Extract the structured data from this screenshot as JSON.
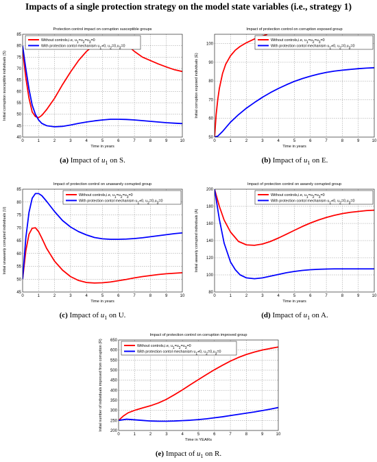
{
  "page": {
    "title": "Impacts of a single protection strategy on the model state variables (i.e., strategy 1)"
  },
  "colors": {
    "without": "#ff0000",
    "with": "#0000ff",
    "grid": "#8c8c8c"
  },
  "chart_data": [
    {
      "id": "a",
      "type": "line",
      "title": "Protection control impact on corruption susceptible groups",
      "xlabel": "Time in years",
      "ylabel": "Initial corruption susceptible individuals (S)",
      "xlim": [
        0,
        10
      ],
      "ylim": [
        40,
        85
      ],
      "xticks": [
        0,
        1,
        2,
        3,
        4,
        5,
        6,
        7,
        8,
        9,
        10
      ],
      "yticks": [
        40,
        45,
        50,
        55,
        60,
        65,
        70,
        75,
        80,
        85
      ],
      "grid": true,
      "legend": "top-left",
      "caption_label": "(a)",
      "caption_text": "Impact of u1 on S.",
      "series": [
        {
          "name": "Without controls,i.e, u1=u2=u3=0",
          "color": "#ff0000",
          "x": [
            0,
            0.2,
            0.4,
            0.6,
            0.8,
            1.0,
            1.2,
            1.5,
            2.0,
            2.5,
            3.0,
            3.5,
            4.0,
            4.5,
            5.0,
            5.5,
            6.0,
            6.5,
            7.0,
            7.5,
            8.0,
            8.5,
            9.0,
            9.5,
            10
          ],
          "y": [
            78,
            66,
            57,
            51,
            49,
            48.5,
            49.5,
            52,
            57,
            63,
            68.5,
            73.5,
            77.5,
            80.5,
            82.3,
            83,
            82.5,
            80.5,
            77.5,
            75,
            73.5,
            72,
            70.7,
            69.5,
            68.7
          ]
        },
        {
          "name": "With protection contol mechanism u1≠0, u2=0,u3=0",
          "color": "#0000ff",
          "x": [
            0,
            0.2,
            0.4,
            0.6,
            0.8,
            1.0,
            1.2,
            1.5,
            2.0,
            2.5,
            3.0,
            3.5,
            4.0,
            4.5,
            5.0,
            5.5,
            6.0,
            6.5,
            7.0,
            7.5,
            8.0,
            8.5,
            9.0,
            9.5,
            10
          ],
          "y": [
            80,
            70,
            61,
            54,
            50,
            47.5,
            46,
            45,
            44.5,
            44.7,
            45.3,
            46,
            46.6,
            47.1,
            47.5,
            47.8,
            47.8,
            47.7,
            47.5,
            47.2,
            46.9,
            46.6,
            46.3,
            46.1,
            45.9
          ]
        }
      ]
    },
    {
      "id": "b",
      "type": "line",
      "title": "Impact of protection control on corruption exposed group",
      "xlabel": "Time in years",
      "ylabel": "Initial corruption exposed individuals (E)",
      "xlim": [
        0,
        10
      ],
      "ylim": [
        50,
        105
      ],
      "xticks": [
        0,
        1,
        2,
        3,
        4,
        5,
        6,
        7,
        8,
        9,
        10
      ],
      "yticks": [
        50,
        60,
        70,
        80,
        90,
        100
      ],
      "grid": true,
      "legend": "top-right",
      "caption_label": "(b)",
      "caption_text": "Impact of u1 on E.",
      "series": [
        {
          "name": "Without controls,i.e, u1=u2=u3=0",
          "color": "#ff0000",
          "x": [
            0,
            0.1,
            0.2,
            0.3,
            0.5,
            0.7,
            1.0,
            1.3,
            1.6,
            2.0,
            2.5,
            3.0,
            3.3
          ],
          "y": [
            50,
            62,
            70,
            76,
            84,
            89,
            93.5,
            96.5,
            98.5,
            100.5,
            102.5,
            104,
            105
          ]
        },
        {
          "name": "With protection contol mechanism u1≠0, u2=0,u3=0",
          "color": "#0000ff",
          "x": [
            0,
            0.2,
            0.5,
            1.0,
            1.5,
            2.0,
            2.5,
            3.0,
            3.5,
            4.0,
            4.5,
            5.0,
            5.5,
            6.0,
            6.5,
            7.0,
            7.5,
            8.0,
            8.5,
            9.0,
            9.5,
            10
          ],
          "y": [
            50,
            50.5,
            53,
            58,
            62,
            65.5,
            68.5,
            71.3,
            73.8,
            76,
            78,
            79.8,
            81.3,
            82.6,
            83.7,
            84.6,
            85.3,
            85.8,
            86.2,
            86.6,
            86.9,
            87.1
          ]
        }
      ]
    },
    {
      "id": "c",
      "type": "line",
      "title": "Impact of protection control on unawarely corrupted group",
      "xlabel": "Time in years",
      "ylabel": "Initial unawarely corrupted individuals (U)",
      "xlim": [
        0,
        10
      ],
      "ylim": [
        45,
        85
      ],
      "xticks": [
        0,
        1,
        2,
        3,
        4,
        5,
        6,
        7,
        8,
        9,
        10
      ],
      "yticks": [
        45,
        50,
        55,
        60,
        65,
        70,
        75,
        80,
        85
      ],
      "grid": true,
      "legend": "top-right",
      "caption_label": "(c)",
      "caption_text": "Impact of u1 on U.",
      "series": [
        {
          "name": "Without controls,i.e, u1=u2=u3=0",
          "color": "#ff0000",
          "x": [
            0,
            0.2,
            0.4,
            0.6,
            0.8,
            1.0,
            1.2,
            1.5,
            2.0,
            2.5,
            3.0,
            3.5,
            4.0,
            4.5,
            5.0,
            5.5,
            6.0,
            6.5,
            7.0,
            7.5,
            8.0,
            8.5,
            9.0,
            9.5,
            10
          ],
          "y": [
            50,
            61,
            67.5,
            69.8,
            70,
            68.5,
            66,
            62,
            57,
            53.5,
            51,
            49.5,
            48.7,
            48.5,
            48.6,
            48.9,
            49.4,
            49.9,
            50.5,
            51,
            51.4,
            51.8,
            52.1,
            52.3,
            52.5
          ]
        },
        {
          "name": "With protection contol mechanism u1≠0, u2=0,u3=0",
          "color": "#0000ff",
          "x": [
            0,
            0.2,
            0.4,
            0.6,
            0.8,
            1.0,
            1.2,
            1.5,
            2.0,
            2.5,
            3.0,
            3.5,
            4.0,
            4.5,
            5.0,
            5.5,
            6.0,
            6.5,
            7.0,
            7.5,
            8.0,
            8.5,
            9.0,
            9.5,
            10
          ],
          "y": [
            50,
            66,
            76,
            81.5,
            83.3,
            83.3,
            82.5,
            80.3,
            76.3,
            72.8,
            70.3,
            68.5,
            67.2,
            66.2,
            65.7,
            65.5,
            65.5,
            65.6,
            65.8,
            66.1,
            66.5,
            66.9,
            67.3,
            67.7,
            68
          ]
        }
      ]
    },
    {
      "id": "d",
      "type": "line",
      "title": "Impact of protection control on awarely corrupted group",
      "xlabel": "Time in years",
      "ylabel": "Initial awarely corrupted individuals (A)",
      "xlim": [
        0,
        10
      ],
      "ylim": [
        80,
        200
      ],
      "xticks": [
        0,
        1,
        2,
        3,
        4,
        5,
        6,
        7,
        8,
        9,
        10
      ],
      "yticks": [
        80,
        100,
        120,
        140,
        160,
        180,
        200
      ],
      "grid": true,
      "legend": "top-right",
      "caption_label": "(d)",
      "caption_text": "Impact of u1 on A.",
      "series": [
        {
          "name": "Without controls,i.e, u1=u2=u3=0",
          "color": "#ff0000",
          "x": [
            0,
            0.3,
            0.6,
            1.0,
            1.5,
            2.0,
            2.5,
            3.0,
            3.5,
            4.0,
            4.5,
            5.0,
            5.5,
            6.0,
            6.5,
            7.0,
            7.5,
            8.0,
            8.5,
            9.0,
            9.5,
            10
          ],
          "y": [
            200,
            180,
            164,
            150,
            139,
            135,
            134.5,
            136,
            139,
            143,
            147.5,
            152,
            156.5,
            160.5,
            164,
            167,
            169.5,
            171.5,
            173,
            174,
            175,
            175.5
          ]
        },
        {
          "name": "With protection contol mechanism u1≠0, u2=0,u3=0",
          "color": "#0000ff",
          "x": [
            0,
            0.3,
            0.6,
            1.0,
            1.3,
            1.6,
            2.0,
            2.5,
            3.0,
            3.5,
            4.0,
            4.5,
            5.0,
            5.5,
            6.0,
            6.5,
            7.0,
            7.5,
            8.0,
            8.5,
            9.0,
            9.5,
            10
          ],
          "y": [
            200,
            165,
            137,
            115,
            106,
            100,
            96.5,
            95.5,
            96.5,
            98.5,
            100.5,
            102.5,
            104,
            105.2,
            106,
            106.5,
            106.8,
            107,
            107,
            107,
            107,
            107,
            107
          ]
        }
      ]
    },
    {
      "id": "e",
      "type": "line",
      "title": "Impact of protection control on corruption improved group",
      "xlabel": "Time in YEARs",
      "ylabel": "Initial number of individuals improved from corruption (R)",
      "xlim": [
        0,
        10
      ],
      "ylim": [
        200,
        650
      ],
      "xticks": [
        0,
        1,
        2,
        3,
        4,
        5,
        6,
        7,
        8,
        9,
        10
      ],
      "yticks": [
        200,
        250,
        300,
        350,
        400,
        450,
        500,
        550,
        600,
        650
      ],
      "grid": true,
      "legend": "top-left",
      "caption_label": "(e)",
      "caption_text": "Impact of u1 on R.",
      "series": [
        {
          "name": "Without controls,i.e, u1=u2=u3=0",
          "color": "#ff0000",
          "x": [
            0,
            0.3,
            0.6,
            1.0,
            1.5,
            2.0,
            2.5,
            3.0,
            3.5,
            4.0,
            4.5,
            5.0,
            5.5,
            6.0,
            6.5,
            7.0,
            7.5,
            8.0,
            8.5,
            9.0,
            9.5,
            10
          ],
          "y": [
            250,
            272,
            288,
            300,
            312,
            323,
            337,
            355,
            378,
            402,
            428,
            453,
            478,
            502,
            524,
            545,
            563,
            578,
            590,
            600,
            608,
            615
          ]
        },
        {
          "name": "With protection contol mechanism u1≠0, u2=0,u3=0",
          "color": "#0000ff",
          "x": [
            0,
            0.5,
            1.0,
            1.5,
            2.0,
            2.5,
            3.0,
            3.5,
            4.0,
            4.5,
            5.0,
            5.5,
            6.0,
            6.5,
            7.0,
            7.5,
            8.0,
            8.5,
            9.0,
            9.5,
            10
          ],
          "y": [
            250,
            256,
            253,
            250,
            247,
            246,
            246,
            247,
            249,
            251,
            254,
            258,
            263,
            268,
            274,
            280,
            286,
            292,
            299,
            306,
            314
          ]
        }
      ]
    }
  ]
}
